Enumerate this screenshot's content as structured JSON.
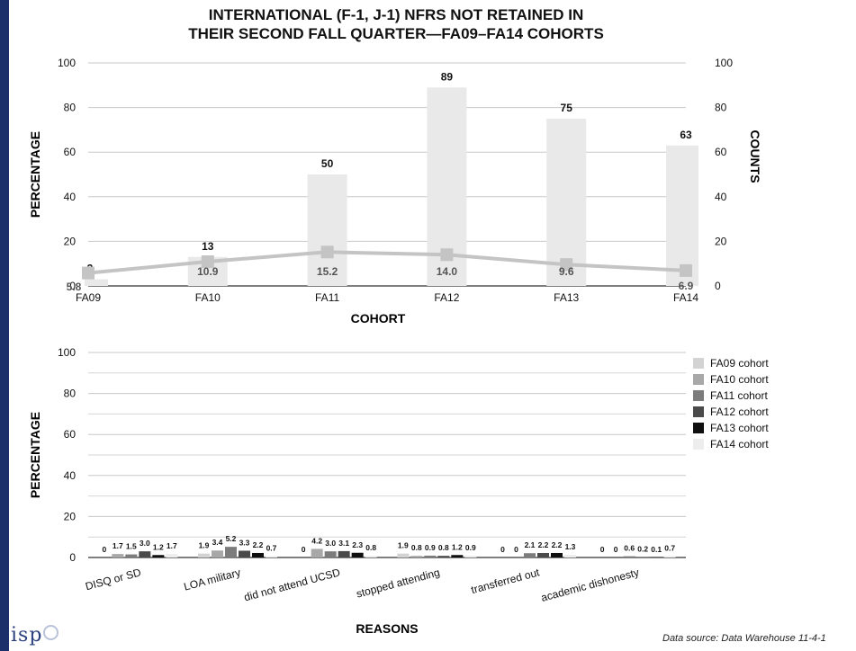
{
  "title": {
    "line1": "INTERNATIONAL (F-1, J-1) NFRS NOT RETAINED IN",
    "line2": "THEIR SECOND FALL QUARTER—FA09–FA14 COHORTS"
  },
  "logo": {
    "text": "isp"
  },
  "source": "Data source: Data Warehouse 11-4-1",
  "chart_data": [
    {
      "type": "bar",
      "title": "INTERNATIONAL (F-1, J-1) NFRS NOT RETAINED IN THEIR SECOND FALL QUARTER—FA09–FA14 COHORTS",
      "xlabel": "COHORT",
      "ylabel": "PERCENTAGE",
      "y2label": "COUNTS",
      "categories": [
        "FA09",
        "FA10",
        "FA11",
        "FA12",
        "FA13",
        "FA14"
      ],
      "ylim": [
        0,
        100
      ],
      "y2lim": [
        0,
        100
      ],
      "yticks": [
        0,
        20,
        40,
        60,
        80,
        100
      ],
      "y2ticks": [
        0,
        20,
        40,
        60,
        80,
        100
      ],
      "grid": true,
      "series": [
        {
          "type": "bar",
          "axis": "right",
          "values": [
            3,
            13,
            50,
            89,
            75,
            63
          ],
          "labels": [
            "3",
            "13",
            "50",
            "89",
            "75",
            "63"
          ],
          "color": "#e9e9e9"
        },
        {
          "type": "line",
          "axis": "left",
          "values": [
            5.8,
            10.9,
            15.2,
            14.0,
            9.6,
            6.9
          ],
          "labels": [
            "5.8",
            "10.9",
            "15.2",
            "14.0",
            "9.6",
            "6.9"
          ],
          "color": "#c4c4c4"
        }
      ]
    },
    {
      "type": "bar",
      "xlabel": "REASONS",
      "ylabel": "PERCENTAGE",
      "categories": [
        "DISQ or SD",
        "LOA military",
        "did not attend UCSD",
        "stopped attending",
        "transferred out",
        "academic dishonesty"
      ],
      "ylim": [
        0,
        100
      ],
      "yticks": [
        0,
        20,
        40,
        60,
        80,
        100
      ],
      "grid": true,
      "legend": "right",
      "series": [
        {
          "name": "FA09 cohort",
          "color": "#d3d3d3",
          "values": [
            0,
            1.9,
            0,
            1.9,
            0,
            0
          ],
          "labels": [
            "0",
            "1.9",
            "0",
            "1.9",
            "0",
            "0"
          ]
        },
        {
          "name": "FA10 cohort",
          "color": "#a8a8a8",
          "values": [
            1.7,
            3.4,
            4.2,
            0.8,
            0,
            0
          ],
          "labels": [
            "1.7",
            "3.4",
            "4.2",
            "0.8",
            "0",
            "0"
          ]
        },
        {
          "name": "FA11 cohort",
          "color": "#7c7c7c",
          "values": [
            1.5,
            5.2,
            3.0,
            0.9,
            2.1,
            0.6
          ],
          "labels": [
            "1.5",
            "5.2",
            "3.0",
            "0.9",
            "2.1",
            "0.6"
          ]
        },
        {
          "name": "FA12 cohort",
          "color": "#4a4a4a",
          "values": [
            3.0,
            3.3,
            3.1,
            0.8,
            2.2,
            0.2
          ],
          "labels": [
            "3.0",
            "3.3",
            "3.1",
            "0.8",
            "2.2",
            "0.2"
          ]
        },
        {
          "name": "FA13 cohort",
          "color": "#0f0f0f",
          "values": [
            1.2,
            2.2,
            2.3,
            1.2,
            2.2,
            0.1
          ],
          "labels": [
            "1.2",
            "2.2",
            "2.3",
            "1.2",
            "2.2",
            "0.1"
          ]
        },
        {
          "name": "FA14 cohort",
          "color": "#ededed",
          "values": [
            1.7,
            0.7,
            0.8,
            0.9,
            1.3,
            0.7
          ],
          "labels": [
            "1.7",
            "0.7",
            "0.8",
            "0.9",
            "1.3",
            "0.7"
          ]
        }
      ]
    }
  ]
}
